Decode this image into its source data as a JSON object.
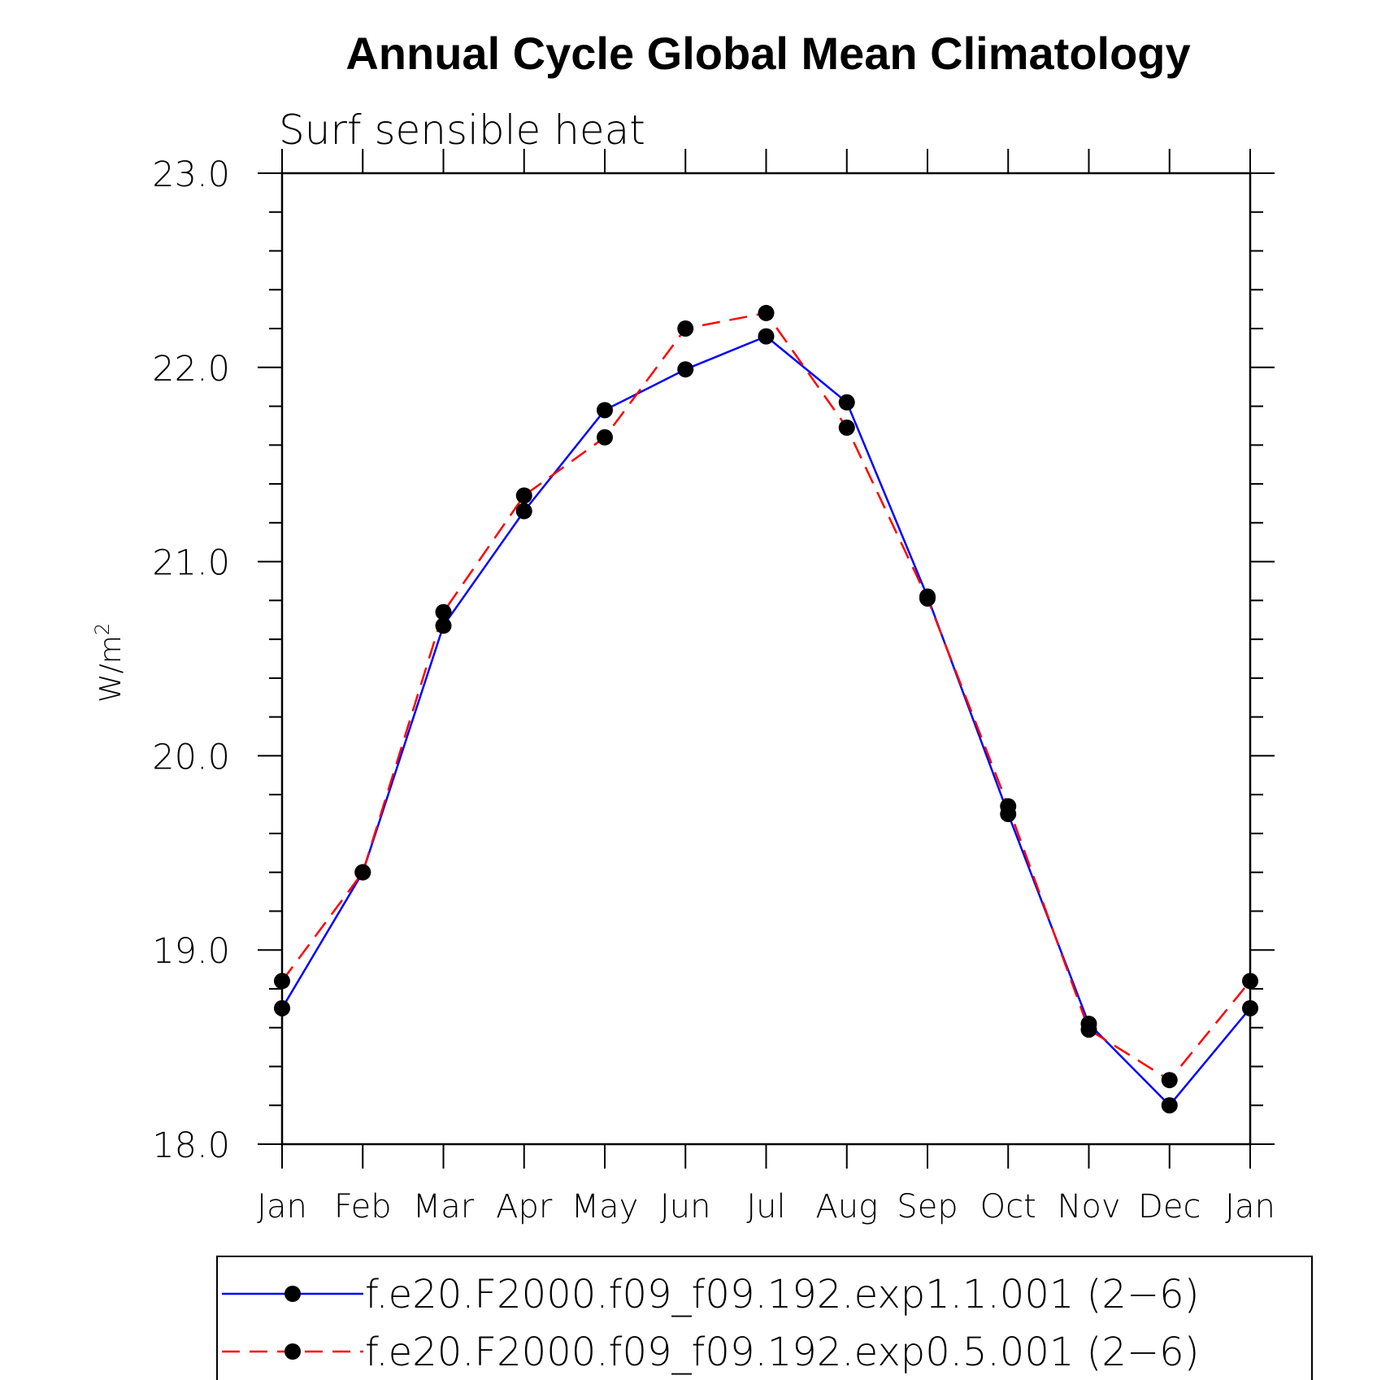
{
  "chart_data": {
    "type": "line",
    "title": "Annual Cycle Global Mean Climatology",
    "subtitle": "Surf sensible heat",
    "ylabel": "W/m",
    "ylabel_sup": "2",
    "xlabel": "",
    "ylim": [
      18.0,
      23.0
    ],
    "y_ticks": [
      18.0,
      19.0,
      20.0,
      21.0,
      22.0,
      23.0
    ],
    "y_tick_labels": [
      "18.0",
      "19.0",
      "20.0",
      "21.0",
      "22.0",
      "23.0"
    ],
    "y_minor_step": 0.2,
    "categories": [
      "Jan",
      "Feb",
      "Mar",
      "Apr",
      "May",
      "Jun",
      "Jul",
      "Aug",
      "Sep",
      "Oct",
      "Nov",
      "Dec",
      "Jan"
    ],
    "series": [
      {
        "name": "f.e20.F2000.f09_f09.192.exp1.1.001 (2−6)",
        "color": "#0000ff",
        "style": "solid",
        "marker": "dot",
        "values": [
          18.7,
          19.4,
          20.67,
          21.26,
          21.78,
          21.99,
          22.16,
          21.82,
          20.82,
          19.7,
          18.62,
          18.2,
          18.7
        ]
      },
      {
        "name": "f.e20.F2000.f09_f09.192.exp0.5.001 (2−6)",
        "color": "#ff0000",
        "style": "dashed",
        "marker": "dot",
        "values": [
          18.84,
          19.4,
          20.74,
          21.34,
          21.64,
          22.2,
          22.28,
          21.69,
          20.81,
          19.74,
          18.59,
          18.33,
          18.84
        ]
      }
    ],
    "legend_position": "bottom"
  }
}
